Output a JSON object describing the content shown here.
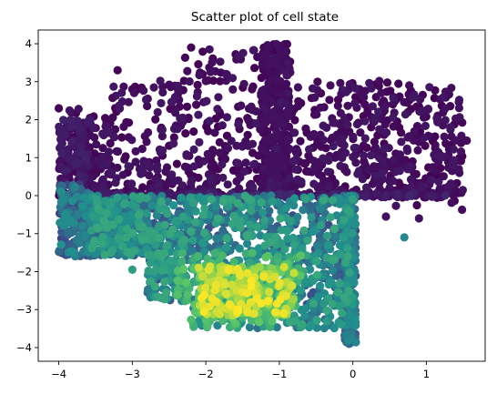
{
  "chart_data": {
    "type": "scatter",
    "title": "Scatter plot of cell state",
    "xlabel": "",
    "ylabel": "",
    "xlim": [
      -4.28,
      1.8
    ],
    "ylim": [
      -4.36,
      4.36
    ],
    "grid": false,
    "colormap": "viridis",
    "x_ticks": [
      -4,
      -3,
      -2,
      -1,
      0,
      1
    ],
    "y_ticks": [
      -4,
      -3,
      -2,
      -1,
      0,
      1,
      2,
      3,
      4
    ],
    "x_tick_labels": [
      "−4",
      "−3",
      "−2",
      "−1",
      "0",
      "1"
    ],
    "y_tick_labels": [
      "−4",
      "−3",
      "−2",
      "−1",
      "0",
      "1",
      "2",
      "3",
      "4"
    ],
    "colors": {
      "low": "#440154",
      "mid_low": "#3b528b",
      "mid": "#21918c",
      "mid_high": "#5ec962",
      "high": "#fde725"
    },
    "clusters": [
      {
        "region": "upper band",
        "x_range": [
          -4.0,
          1.55
        ],
        "y_range": [
          0.0,
          4.0
        ],
        "value": "low"
      },
      {
        "region": "left column",
        "x_range": [
          -4.0,
          -3.6
        ],
        "y_range": [
          -1.7,
          2.3
        ],
        "value": "low to mid"
      },
      {
        "region": "vertical stripe near x=-1",
        "x_range": [
          -1.25,
          -0.85
        ],
        "y_range": [
          0.0,
          4.0
        ],
        "value": "low"
      },
      {
        "region": "vertical stripe near x=0",
        "x_range": [
          -0.1,
          0.05
        ],
        "y_range": [
          -3.9,
          0.0
        ],
        "value": "mid"
      },
      {
        "region": "lower-middle block",
        "x_range": [
          -2.9,
          0.0
        ],
        "y_range": [
          -3.5,
          0.0
        ],
        "value": "mid to high"
      },
      {
        "region": "bright core",
        "x_range": [
          -2.0,
          -0.8
        ],
        "y_range": [
          -3.1,
          -2.0
        ],
        "value": "high"
      }
    ],
    "highlighted_points": [
      {
        "x": 1.55,
        "y": 1.45
      },
      {
        "x": 1.45,
        "y": 0.6
      },
      {
        "x": 1.35,
        "y": 0.65
      },
      {
        "x": 0.95,
        "y": 2.65
      },
      {
        "x": 0.75,
        "y": 2.2
      },
      {
        "x": 0.55,
        "y": 2.6
      },
      {
        "x": 0.45,
        "y": 0.75
      },
      {
        "x": 0.25,
        "y": 1.8
      },
      {
        "x": 0.1,
        "y": 2.7
      },
      {
        "x": 0.7,
        "y": -1.1
      },
      {
        "x": 0.9,
        "y": -0.6
      },
      {
        "x": 0.45,
        "y": -0.55
      },
      {
        "x": -3.4,
        "y": -1.3
      },
      {
        "x": -3.3,
        "y": -1.55
      },
      {
        "x": -3.0,
        "y": -1.95
      },
      {
        "x": -2.2,
        "y": 3.9
      },
      {
        "x": -1.95,
        "y": 3.85
      },
      {
        "x": -1.3,
        "y": 3.65
      },
      {
        "x": -3.0,
        "y": 2.8
      },
      {
        "x": -3.2,
        "y": 3.3
      },
      {
        "x": -4.0,
        "y": 2.3
      },
      {
        "x": -1.65,
        "y": -3.05
      },
      {
        "x": -1.9,
        "y": -3.05
      },
      {
        "x": -1.3,
        "y": -2.75
      },
      {
        "x": -0.7,
        "y": -3.45
      },
      {
        "x": -0.9,
        "y": -2.9
      },
      {
        "x": -0.05,
        "y": -3.9
      }
    ]
  }
}
